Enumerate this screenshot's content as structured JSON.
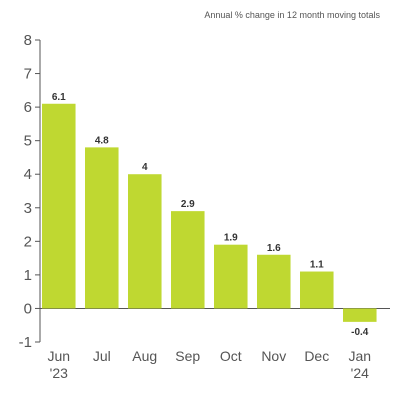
{
  "chart_data": {
    "type": "bar",
    "title": "",
    "subtitle": "Annual % change in 12 month moving totals",
    "xlabel": "",
    "ylabel": "",
    "categories": [
      "Jun '23",
      "Jul",
      "Aug",
      "Sep",
      "Oct",
      "Nov",
      "Dec",
      "Jan '24"
    ],
    "category_lines": [
      [
        "Jun",
        "'23"
      ],
      [
        "Jul"
      ],
      [
        "Aug"
      ],
      [
        "Sep"
      ],
      [
        "Oct"
      ],
      [
        "Nov"
      ],
      [
        "Dec"
      ],
      [
        "Jan",
        "'24"
      ]
    ],
    "values": [
      6.1,
      4.8,
      4,
      2.9,
      1.9,
      1.6,
      1.1,
      -0.4
    ],
    "value_labels": [
      "6.1",
      "4.8",
      "4",
      "2.9",
      "1.9",
      "1.6",
      "1.1",
      "-0.4"
    ],
    "ylim": [
      -1,
      8
    ],
    "yticks": [
      -1,
      0,
      1,
      2,
      3,
      4,
      5,
      6,
      7,
      8
    ],
    "grid": false,
    "colors": {
      "bar": "#bfd831",
      "axis": "#555555",
      "text": "#333333"
    }
  }
}
